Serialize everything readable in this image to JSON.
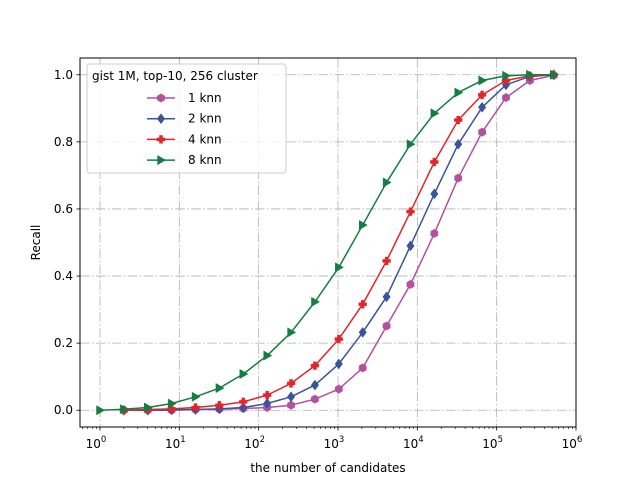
{
  "chart_data": {
    "type": "line",
    "xscale": "log",
    "xlim": [
      0.56,
      1000000
    ],
    "ylim": [
      -0.05,
      1.05
    ],
    "xlabel": "the number of candidates",
    "ylabel": "Recall",
    "x_ticks": [
      1,
      10,
      100,
      1000,
      10000,
      100000,
      1000000
    ],
    "x_tick_labels": [
      {
        "base": "10",
        "exp": "0"
      },
      {
        "base": "10",
        "exp": "1"
      },
      {
        "base": "10",
        "exp": "2"
      },
      {
        "base": "10",
        "exp": "3"
      },
      {
        "base": "10",
        "exp": "4"
      },
      {
        "base": "10",
        "exp": "5"
      },
      {
        "base": "10",
        "exp": "6"
      }
    ],
    "y_ticks": [
      0.0,
      0.2,
      0.4,
      0.6,
      0.8,
      1.0
    ],
    "y_tick_labels": [
      "0.0",
      "0.2",
      "0.4",
      "0.6",
      "0.8",
      "1.0"
    ],
    "grid": true,
    "grid_style": "dashdot",
    "legend": {
      "title": "gist 1M, top-10, 256 cluster",
      "placement": "upper-left"
    },
    "series": [
      {
        "name": "1 knn",
        "color": "#b2519e",
        "marker": "hexagon",
        "x": [
          2,
          4,
          8,
          16,
          32,
          64,
          128,
          256,
          512,
          1024,
          2048,
          4096,
          8192,
          16384,
          32768,
          65536,
          131072,
          262144,
          524288
        ],
        "y": [
          0.0,
          0.0,
          0.0,
          0.002,
          0.003,
          0.005,
          0.008,
          0.015,
          0.033,
          0.063,
          0.126,
          0.251,
          0.375,
          0.527,
          0.692,
          0.829,
          0.932,
          0.983,
          0.998
        ]
      },
      {
        "name": "2 knn",
        "color": "#3a539b",
        "marker": "diamond",
        "x": [
          2,
          4,
          8,
          16,
          32,
          64,
          128,
          256,
          512,
          1024,
          2048,
          4096,
          8192,
          16384,
          32768,
          65536,
          131072,
          262144,
          524288
        ],
        "y": [
          0.0,
          0.0,
          0.001,
          0.002,
          0.004,
          0.008,
          0.02,
          0.04,
          0.075,
          0.138,
          0.232,
          0.338,
          0.49,
          0.645,
          0.793,
          0.903,
          0.97,
          0.995,
          1.0
        ]
      },
      {
        "name": "4 knn",
        "color": "#e0262b",
        "marker": "plus",
        "x": [
          2,
          4,
          8,
          16,
          32,
          64,
          128,
          256,
          512,
          1024,
          2048,
          4096,
          8192,
          16384,
          32768,
          65536,
          131072,
          262144,
          524288
        ],
        "y": [
          0.0,
          0.002,
          0.004,
          0.008,
          0.015,
          0.025,
          0.045,
          0.08,
          0.133,
          0.212,
          0.316,
          0.445,
          0.592,
          0.74,
          0.865,
          0.94,
          0.983,
          0.997,
          1.0
        ]
      },
      {
        "name": "8 knn",
        "color": "#137d42",
        "marker": "triangle-right",
        "x": [
          1,
          2,
          4,
          8,
          16,
          32,
          64,
          128,
          256,
          512,
          1024,
          2048,
          4096,
          8192,
          16384,
          32768,
          65536,
          131072,
          262144,
          524288
        ],
        "y": [
          0.0,
          0.003,
          0.008,
          0.02,
          0.04,
          0.066,
          0.108,
          0.163,
          0.232,
          0.323,
          0.426,
          0.552,
          0.679,
          0.793,
          0.885,
          0.947,
          0.983,
          0.997,
          1.0,
          1.0
        ]
      }
    ]
  }
}
